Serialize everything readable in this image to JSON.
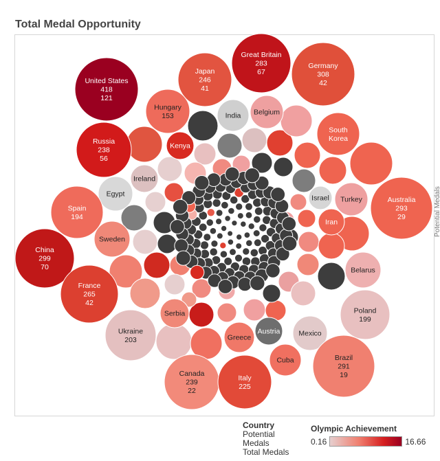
{
  "page": {
    "title": "Total Medal Opportunity",
    "right_label": "Potential Medals"
  },
  "legend": {
    "size_header": "Country",
    "size_items": [
      "Potential",
      "Medals",
      "Total Medals"
    ],
    "color_header": "Olympic Achievement",
    "color_min": "0.16",
    "color_max": "16.66"
  },
  "colors": {
    "min": "#e6cfcf",
    "mid": "#f08070",
    "high": "#d62020",
    "max": "#9a0020",
    "dark": "#3d3d3d",
    "grey": "#7d7d7d"
  },
  "chart_data": {
    "type": "bubble",
    "title": "Total Medal Opportunity",
    "size_measure": "Potential Medals",
    "color_measure": "Olympic Achievement",
    "color_range": [
      0.16,
      16.66
    ],
    "countries": [
      {
        "name": "United States",
        "potential": 418,
        "total": 121
      },
      {
        "name": "Great Britain",
        "potential": 283,
        "total": 67
      },
      {
        "name": "Germany",
        "potential": 308,
        "total": 42
      },
      {
        "name": "Japan",
        "potential": 246,
        "total": 41
      },
      {
        "name": "Hungary",
        "potential": 153
      },
      {
        "name": "India"
      },
      {
        "name": "Belgium"
      },
      {
        "name": "South Korea"
      },
      {
        "name": "Russia",
        "potential": 238,
        "total": 56
      },
      {
        "name": "Kenya"
      },
      {
        "name": "Ireland"
      },
      {
        "name": "Egypt"
      },
      {
        "name": "Israel"
      },
      {
        "name": "Turkey"
      },
      {
        "name": "Australia",
        "potential": 293,
        "total": 29
      },
      {
        "name": "Spain",
        "potential": 194
      },
      {
        "name": "Iran"
      },
      {
        "name": "China",
        "potential": 299,
        "total": 70
      },
      {
        "name": "Sweden"
      },
      {
        "name": "Belarus"
      },
      {
        "name": "France",
        "potential": 265,
        "total": 42
      },
      {
        "name": "Serbia"
      },
      {
        "name": "Poland",
        "potential": 199
      },
      {
        "name": "Ukraine",
        "potential": 203
      },
      {
        "name": "Austria"
      },
      {
        "name": "Mexico"
      },
      {
        "name": "Greece"
      },
      {
        "name": "Cuba"
      },
      {
        "name": "Brazil",
        "potential": 291,
        "total": 19
      },
      {
        "name": "Canada",
        "potential": 239,
        "total": 22
      },
      {
        "name": "Italy",
        "potential": 225
      }
    ]
  }
}
